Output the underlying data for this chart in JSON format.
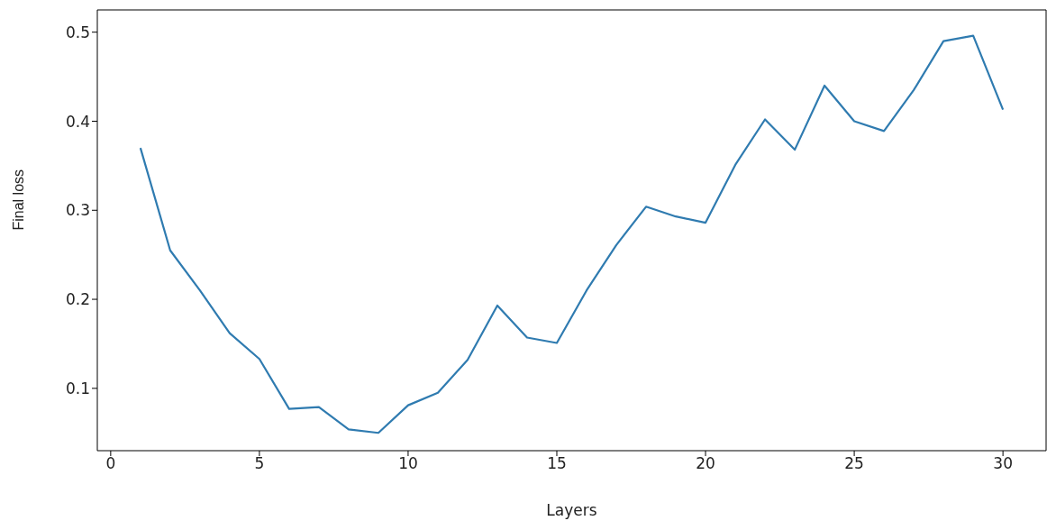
{
  "chart_data": {
    "type": "line",
    "xlabel": "Layers",
    "ylabel": "Final loss",
    "x": [
      1,
      2,
      3,
      4,
      5,
      6,
      7,
      8,
      9,
      10,
      11,
      12,
      13,
      14,
      15,
      16,
      17,
      18,
      19,
      20,
      21,
      22,
      23,
      24,
      25,
      26,
      27,
      28,
      29,
      30
    ],
    "series": [
      {
        "color": "#2f7bb0",
        "values": [
          0.37,
          0.255,
          0.21,
          0.162,
          0.133,
          0.077,
          0.079,
          0.054,
          0.05,
          0.081,
          0.095,
          0.132,
          0.193,
          0.157,
          0.151,
          0.21,
          0.261,
          0.304,
          0.293,
          0.286,
          0.351,
          0.402,
          0.368,
          0.44,
          0.4,
          0.389,
          0.435,
          0.49,
          0.496,
          0.413
        ]
      }
    ],
    "xlim": [
      -0.45,
      31.45
    ],
    "xticks": [
      0,
      5,
      10,
      15,
      20,
      25,
      30
    ],
    "ylim": [
      0.03,
      0.525
    ],
    "yticks": [
      0.1,
      0.2,
      0.3,
      0.4,
      0.5
    ],
    "grid": false,
    "legend": false,
    "marker": "none",
    "line_style": "solid"
  }
}
